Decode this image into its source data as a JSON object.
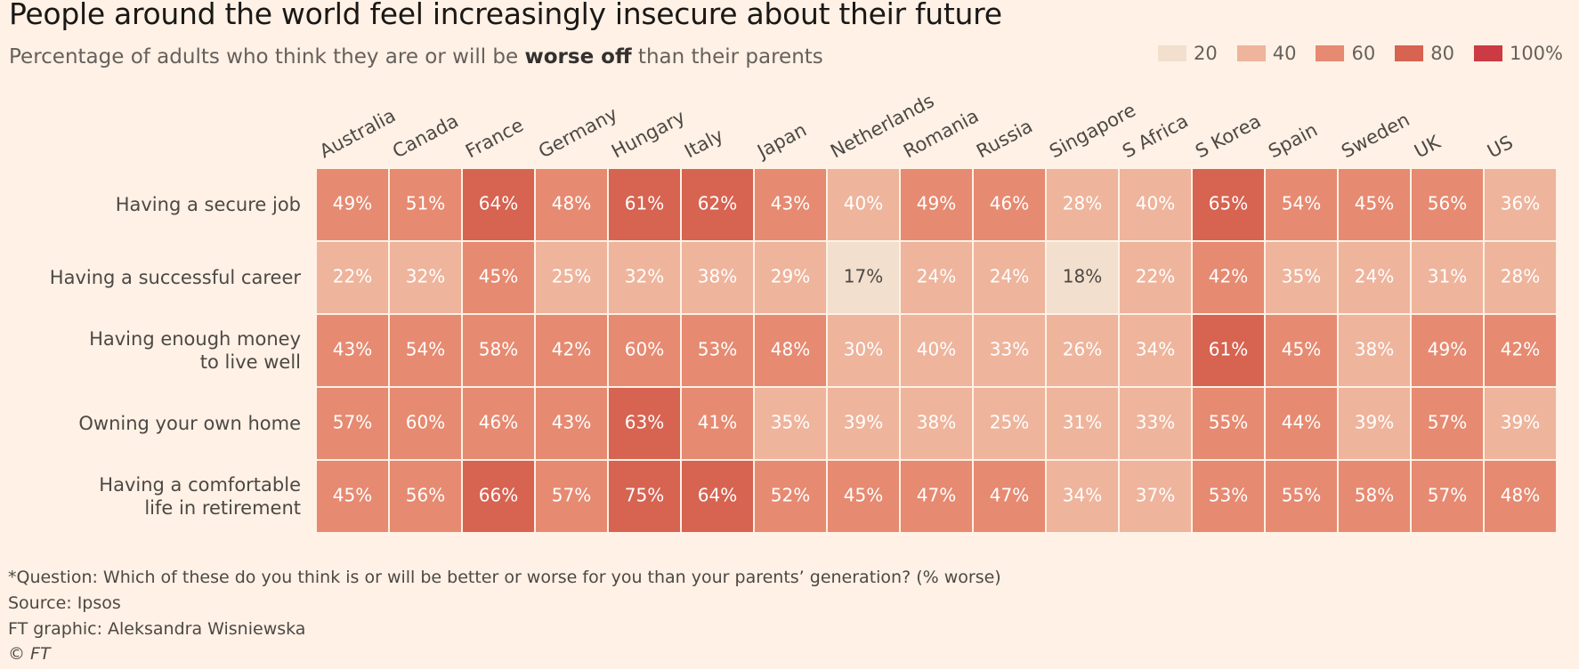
{
  "title": "People around the world feel increasingly insecure about their future",
  "subtitle": {
    "before": "Percentage of adults who think they are or will be ",
    "bold": "worse off",
    "after": " than their parents"
  },
  "legend": [
    {
      "label": "20",
      "color": "#F2DFCE"
    },
    {
      "label": "40",
      "color": "#EEB49C"
    },
    {
      "label": "60",
      "color": "#E68A71"
    },
    {
      "label": "80",
      "color": "#D76351"
    },
    {
      "label": "100%",
      "color": "#CC3A43"
    }
  ],
  "footer": {
    "question": "*Question: Which of these do you think is or will be better or worse for you than your parents’ generation? (% worse)",
    "source": "Source: Ipsos",
    "credit": "FT graphic: Aleksandra Wisniewska",
    "copyright": "© FT"
  },
  "chart_data": {
    "type": "heatmap",
    "columns": [
      "Australia",
      "Canada",
      "France",
      "Germany",
      "Hungary",
      "Italy",
      "Japan",
      "Netherlands",
      "Romania",
      "Russia",
      "Singapore",
      "S Africa",
      "S Korea",
      "Spain",
      "Sweden",
      "UK",
      "US"
    ],
    "rows": [
      {
        "label": [
          "Having a secure job"
        ],
        "values": [
          49,
          51,
          64,
          48,
          61,
          62,
          43,
          40,
          49,
          46,
          28,
          40,
          65,
          54,
          45,
          56,
          36
        ]
      },
      {
        "label": [
          "Having a successful career"
        ],
        "values": [
          22,
          32,
          45,
          25,
          32,
          38,
          29,
          17,
          24,
          24,
          18,
          22,
          42,
          35,
          24,
          31,
          28
        ]
      },
      {
        "label": [
          "Having enough money",
          "to live well"
        ],
        "values": [
          43,
          54,
          58,
          42,
          60,
          53,
          48,
          30,
          40,
          33,
          26,
          34,
          61,
          45,
          38,
          49,
          42
        ]
      },
      {
        "label": [
          "Owning your own home"
        ],
        "values": [
          57,
          60,
          46,
          43,
          63,
          41,
          35,
          39,
          38,
          25,
          31,
          33,
          55,
          44,
          39,
          57,
          39
        ]
      },
      {
        "label": [
          "Having a comfortable",
          "life in retirement"
        ],
        "values": [
          45,
          56,
          66,
          57,
          75,
          64,
          52,
          45,
          47,
          47,
          34,
          37,
          53,
          55,
          58,
          57,
          48
        ]
      }
    ],
    "value_suffix": "%",
    "scale": {
      "bins": [
        {
          "max": 20,
          "color": "#F2DFCE",
          "text": "#4d4845"
        },
        {
          "max": 40,
          "color": "#EEB49C",
          "text": "#ffffff"
        },
        {
          "max": 60,
          "color": "#E68A71",
          "text": "#ffffff"
        },
        {
          "max": 80,
          "color": "#D76351",
          "text": "#ffffff"
        },
        {
          "max": 100,
          "color": "#CC3A43",
          "text": "#ffffff"
        }
      ]
    }
  }
}
